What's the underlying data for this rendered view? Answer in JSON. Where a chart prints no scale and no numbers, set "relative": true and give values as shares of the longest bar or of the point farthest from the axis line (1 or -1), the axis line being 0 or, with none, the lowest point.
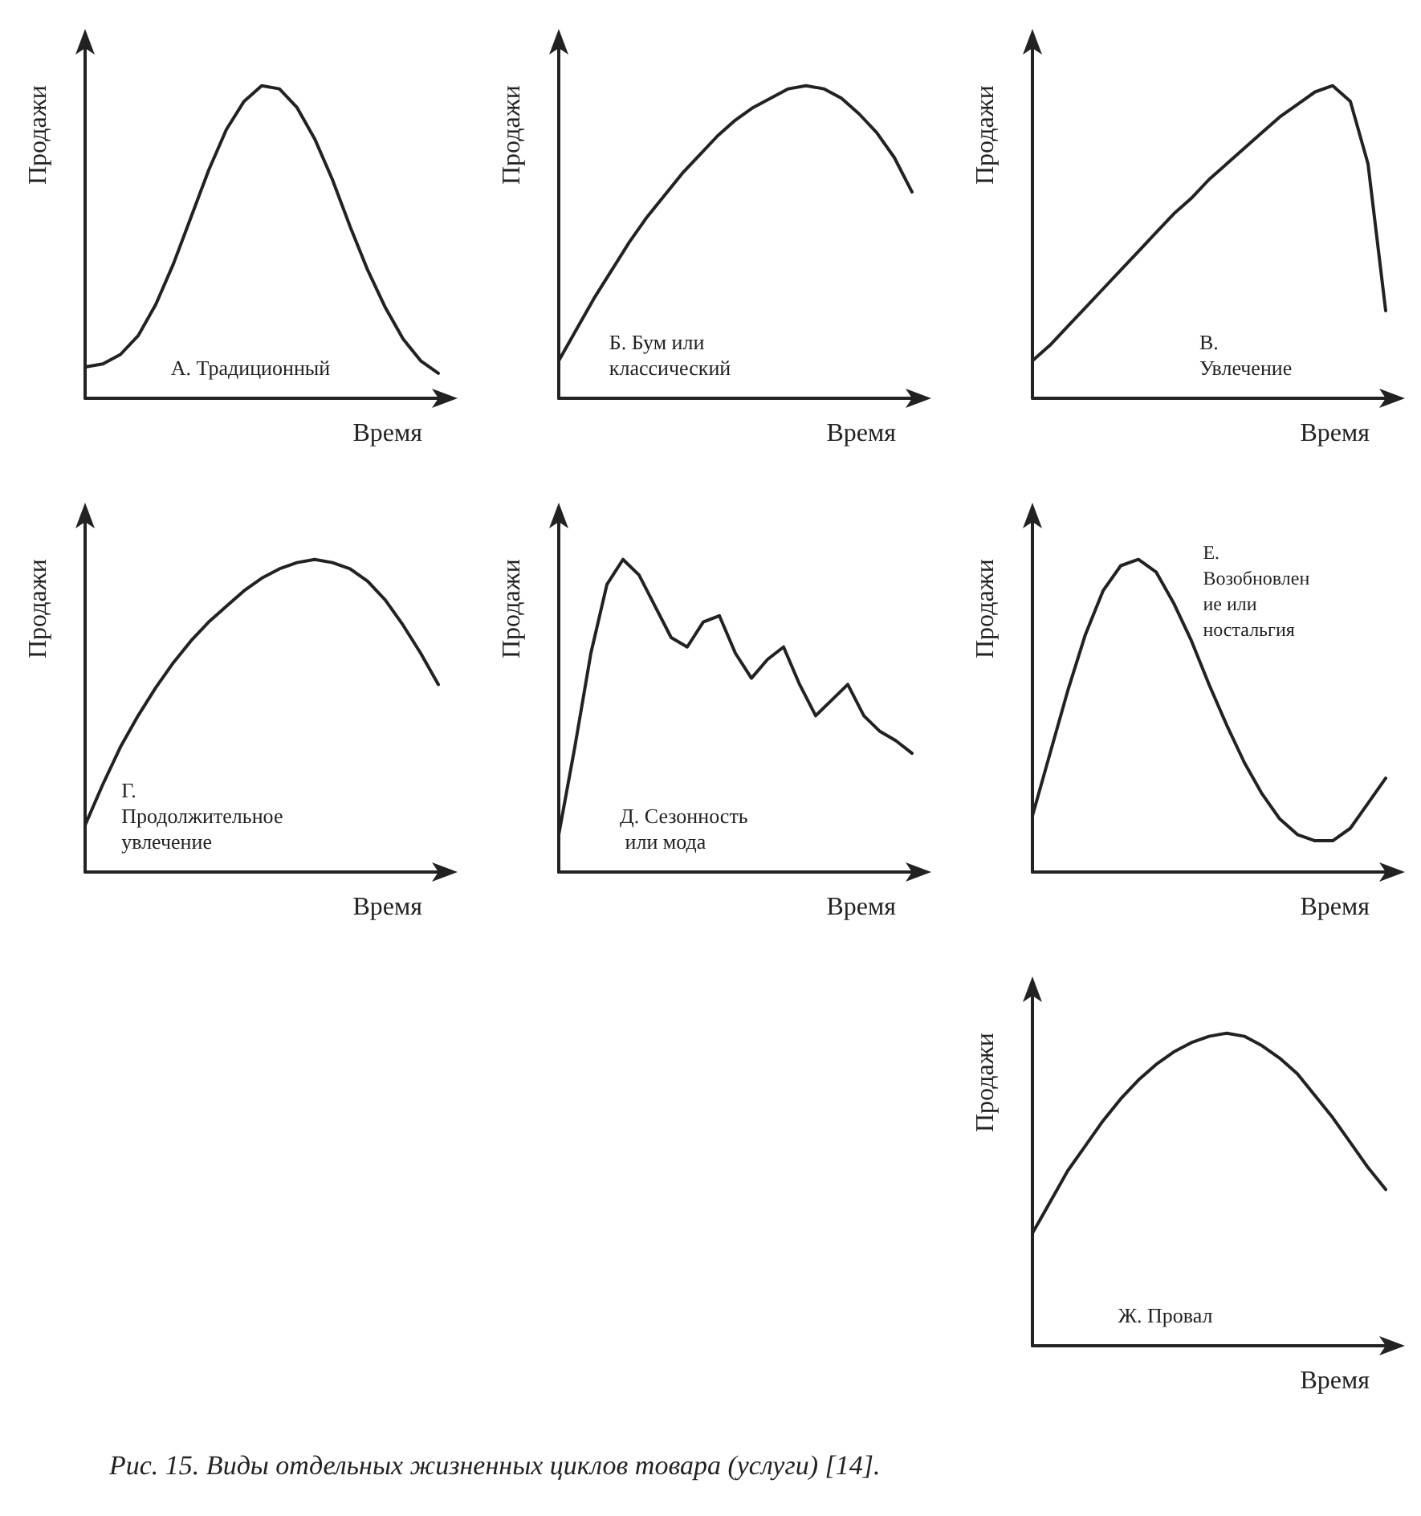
{
  "chart_data": [
    {
      "type": "line",
      "title": "А. Традиционный",
      "xlabel": "Время",
      "ylabel": "Продажи",
      "relative": true,
      "marker": "none",
      "line_style": "solid",
      "categories": [
        null,
        null,
        null,
        null,
        null,
        null,
        null,
        null,
        null,
        null,
        null,
        null,
        null,
        null,
        null,
        null,
        null,
        null,
        null,
        null,
        null
      ],
      "series": [
        {
          "color": "#222222",
          "values": [
            0.1,
            0.11,
            0.14,
            0.2,
            0.3,
            0.43,
            0.58,
            0.73,
            0.86,
            0.95,
            1,
            0.99,
            0.93,
            0.83,
            0.7,
            0.55,
            0.41,
            0.29,
            0.19,
            0.12,
            0.08
          ]
        }
      ]
    },
    {
      "type": "line",
      "title": "Б. Бум или классический",
      "xlabel": "Время",
      "ylabel": "Продажи",
      "relative": true,
      "marker": "none",
      "line_style": "solid",
      "categories": [
        null,
        null,
        null,
        null,
        null,
        null,
        null,
        null,
        null,
        null,
        null,
        null,
        null,
        null,
        null,
        null,
        null,
        null,
        null,
        null,
        null
      ],
      "series": [
        {
          "color": "#222222",
          "values": [
            0.12,
            0.22,
            0.32,
            0.41,
            0.5,
            0.58,
            0.65,
            0.72,
            0.78,
            0.84,
            0.89,
            0.93,
            0.96,
            0.99,
            1,
            0.99,
            0.96,
            0.91,
            0.85,
            0.77,
            0.66
          ]
        }
      ]
    },
    {
      "type": "line",
      "title": "В. Увлечение",
      "xlabel": "Время",
      "ylabel": "Продажи",
      "relative": true,
      "marker": "none",
      "line_style": "solid",
      "categories": [
        null,
        null,
        null,
        null,
        null,
        null,
        null,
        null,
        null,
        null,
        null,
        null,
        null,
        null,
        null,
        null,
        null,
        null,
        null,
        null,
        null
      ],
      "series": [
        {
          "color": "#222222",
          "values": [
            0.12,
            0.17,
            0.23,
            0.29,
            0.35,
            0.41,
            0.47,
            0.53,
            0.59,
            0.64,
            0.7,
            0.75,
            0.8,
            0.85,
            0.9,
            0.94,
            0.98,
            1,
            0.95,
            0.75,
            0.28
          ]
        }
      ]
    },
    {
      "type": "line",
      "title": "Г. Продолжительное увлечение",
      "xlabel": "Время",
      "ylabel": "Продажи",
      "relative": true,
      "marker": "none",
      "line_style": "solid",
      "categories": [
        null,
        null,
        null,
        null,
        null,
        null,
        null,
        null,
        null,
        null,
        null,
        null,
        null,
        null,
        null,
        null,
        null,
        null,
        null,
        null,
        null
      ],
      "series": [
        {
          "color": "#222222",
          "values": [
            0.15,
            0.28,
            0.4,
            0.5,
            0.59,
            0.67,
            0.74,
            0.8,
            0.85,
            0.9,
            0.94,
            0.97,
            0.99,
            1,
            0.99,
            0.97,
            0.93,
            0.87,
            0.79,
            0.7,
            0.6
          ]
        }
      ]
    },
    {
      "type": "line",
      "title": "Д. Сезонность или мода",
      "xlabel": "Время",
      "ylabel": "Продажи",
      "relative": true,
      "marker": "none",
      "line_style": "solid",
      "categories": [
        null,
        null,
        null,
        null,
        null,
        null,
        null,
        null,
        null,
        null,
        null,
        null,
        null,
        null,
        null,
        null,
        null,
        null,
        null,
        null,
        null,
        null,
        null
      ],
      "series": [
        {
          "color": "#222222",
          "values": [
            0.12,
            0.4,
            0.7,
            0.92,
            1,
            0.95,
            0.85,
            0.75,
            0.72,
            0.8,
            0.82,
            0.7,
            0.62,
            0.68,
            0.72,
            0.6,
            0.5,
            0.55,
            0.6,
            0.5,
            0.45,
            0.42,
            0.38
          ]
        }
      ]
    },
    {
      "type": "line",
      "title": "Е. Возобновление или ностальгия",
      "xlabel": "Время",
      "ylabel": "Продажи",
      "relative": true,
      "marker": "none",
      "line_style": "solid",
      "categories": [
        null,
        null,
        null,
        null,
        null,
        null,
        null,
        null,
        null,
        null,
        null,
        null,
        null,
        null,
        null,
        null,
        null,
        null,
        null,
        null,
        null
      ],
      "series": [
        {
          "color": "#222222",
          "values": [
            0.18,
            0.38,
            0.58,
            0.76,
            0.9,
            0.98,
            1,
            0.96,
            0.86,
            0.74,
            0.6,
            0.47,
            0.35,
            0.25,
            0.17,
            0.12,
            0.1,
            0.1,
            0.14,
            0.22,
            0.3
          ]
        }
      ]
    },
    {
      "type": "line",
      "title": "Ж. Провал",
      "xlabel": "Время",
      "ylabel": "Продажи",
      "relative": true,
      "marker": "none",
      "line_style": "solid",
      "categories": [
        null,
        null,
        null,
        null,
        null,
        null,
        null,
        null,
        null,
        null,
        null,
        null,
        null,
        null,
        null,
        null,
        null,
        null,
        null,
        null,
        null
      ],
      "series": [
        {
          "color": "#222222",
          "values": [
            0.36,
            0.46,
            0.56,
            0.64,
            0.72,
            0.79,
            0.85,
            0.9,
            0.94,
            0.97,
            0.99,
            1,
            0.99,
            0.96,
            0.92,
            0.87,
            0.8,
            0.73,
            0.65,
            0.57,
            0.5
          ]
        }
      ],
      "annotations": [
        "Рис. 15. Виды отдельных жизненных циклов товара (услуги) [14]."
      ]
    }
  ]
}
